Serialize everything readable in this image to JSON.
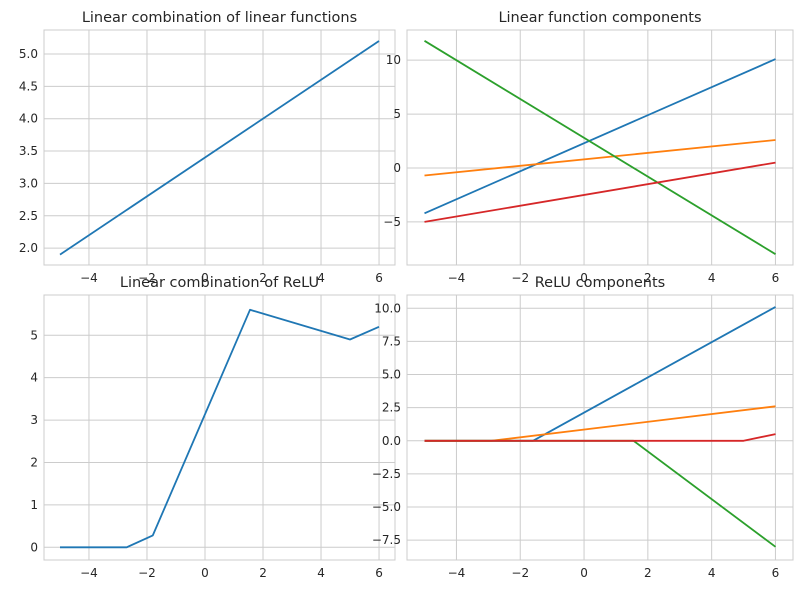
{
  "chart_data": [
    {
      "type": "line",
      "title": "Linear combination of linear functions",
      "xlim": [
        -5.55,
        6.55
      ],
      "ylim": [
        1.74,
        5.37
      ],
      "xticks": [
        -4,
        -2,
        0,
        2,
        4,
        6
      ],
      "yticks": [
        2.0,
        2.5,
        3.0,
        3.5,
        4.0,
        4.5,
        5.0
      ],
      "ytick_labels": [
        "2.0",
        "2.5",
        "3.0",
        "3.5",
        "4.0",
        "4.5",
        "5.0"
      ],
      "grid": true,
      "series": [
        {
          "color": "#1f77b4",
          "x": [
            -5,
            6
          ],
          "y": [
            1.9,
            5.2
          ]
        }
      ]
    },
    {
      "type": "line",
      "title": "Linear function components",
      "xlim": [
        -5.55,
        6.55
      ],
      "ylim": [
        -9.0,
        12.8
      ],
      "xticks": [
        -4,
        -2,
        0,
        2,
        4,
        6
      ],
      "yticks": [
        -5,
        0,
        5,
        10
      ],
      "ytick_labels": [
        "−5",
        "0",
        "5",
        "10"
      ],
      "grid": true,
      "series": [
        {
          "color": "#1f77b4",
          "x": [
            -5,
            6
          ],
          "y": [
            -4.2,
            10.1
          ]
        },
        {
          "color": "#ff7f0e",
          "x": [
            -5,
            6
          ],
          "y": [
            -0.7,
            2.6
          ]
        },
        {
          "color": "#2ca02c",
          "x": [
            -5,
            6
          ],
          "y": [
            11.8,
            -8.0
          ]
        },
        {
          "color": "#d62728",
          "x": [
            -5,
            6
          ],
          "y": [
            -5.0,
            0.5
          ]
        }
      ]
    },
    {
      "type": "line",
      "title": "Linear combination of ReLU",
      "xlim": [
        -5.55,
        6.55
      ],
      "ylim": [
        -0.3,
        5.95
      ],
      "xticks": [
        -4,
        -2,
        0,
        2,
        4,
        6
      ],
      "yticks": [
        0,
        1,
        2,
        3,
        4,
        5
      ],
      "ytick_labels": [
        "0",
        "1",
        "2",
        "3",
        "4",
        "5"
      ],
      "grid": true,
      "series": [
        {
          "color": "#1f77b4",
          "x": [
            -5,
            -2.7,
            -1.8,
            1.55,
            5.0,
            6
          ],
          "y": [
            0,
            0,
            0.28,
            5.6,
            4.9,
            5.2
          ]
        }
      ]
    },
    {
      "type": "line",
      "title": "ReLU components",
      "xlim": [
        -5.55,
        6.55
      ],
      "ylim": [
        -9.0,
        11.0
      ],
      "xticks": [
        -4,
        -2,
        0,
        2,
        4,
        6
      ],
      "yticks": [
        -7.5,
        -5.0,
        -2.5,
        0.0,
        2.5,
        5.0,
        7.5,
        10.0
      ],
      "ytick_labels": [
        "−7.5",
        "−5.0",
        "−2.5",
        "0.0",
        "2.5",
        "5.0",
        "7.5",
        "10.0"
      ],
      "grid": true,
      "series": [
        {
          "color": "#1f77b4",
          "x": [
            -5,
            -1.6,
            6
          ],
          "y": [
            0,
            0,
            10.1
          ]
        },
        {
          "color": "#ff7f0e",
          "x": [
            -5,
            -2.9,
            6
          ],
          "y": [
            0,
            0,
            2.6
          ]
        },
        {
          "color": "#2ca02c",
          "x": [
            -5,
            1.55,
            6
          ],
          "y": [
            0,
            0,
            -8.0
          ]
        },
        {
          "color": "#d62728",
          "x": [
            -5,
            5.0,
            6
          ],
          "y": [
            0,
            0,
            0.5
          ]
        }
      ]
    }
  ]
}
